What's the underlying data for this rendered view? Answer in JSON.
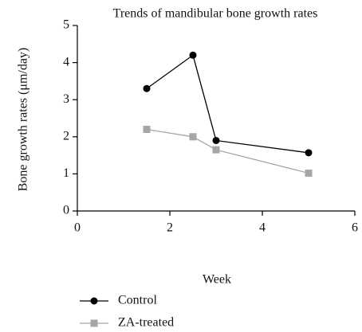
{
  "chart_data": {
    "type": "line",
    "title": "Trends of mandibular bone growth rates",
    "x_label": "Week",
    "y_label": "Bone growth rates (μm/day)",
    "series": [
      {
        "name": "Control",
        "color": "#000000",
        "marker": "circle",
        "x": [
          1.5,
          2.5,
          3,
          5
        ],
        "values": [
          3.3,
          4.2,
          1.9,
          1.57
        ]
      },
      {
        "name": "ZA-treated",
        "color": "#a6a6a6",
        "marker": "square",
        "x": [
          1.5,
          2.5,
          3,
          5
        ],
        "values": [
          2.2,
          2.0,
          1.65,
          1.02
        ]
      }
    ],
    "xlim": [
      0,
      6
    ],
    "xticks": [
      0,
      2,
      4,
      6
    ],
    "ylim": [
      0,
      5
    ],
    "yticks": [
      0,
      1,
      2,
      3,
      4,
      5
    ],
    "grid": false,
    "legend": "bottom"
  }
}
